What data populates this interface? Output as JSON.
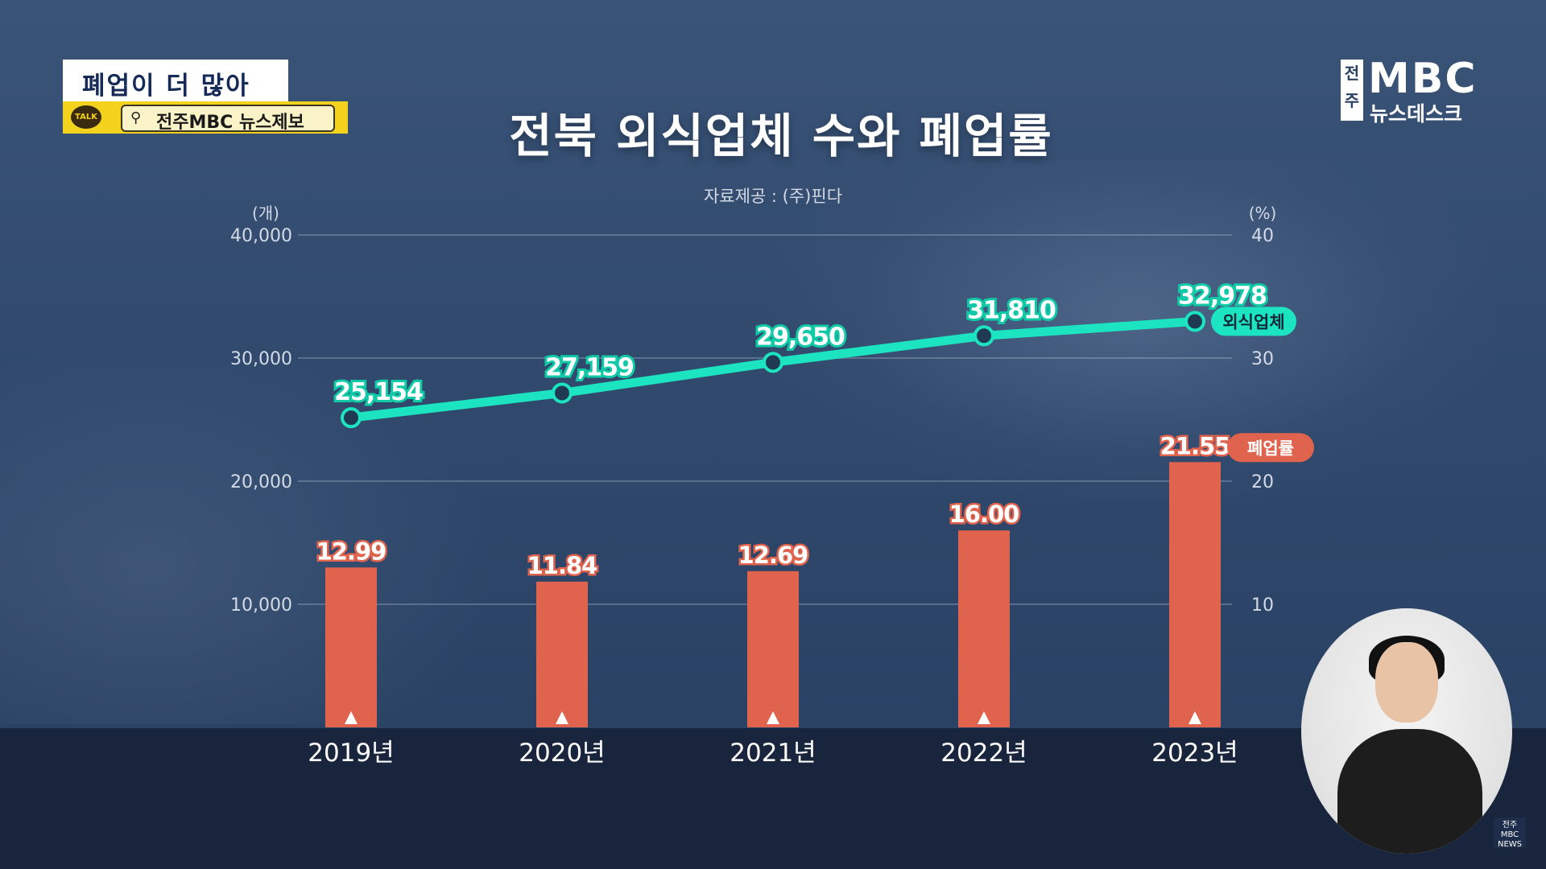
{
  "caption": {
    "headline": "폐업이 더 많아",
    "talk_label": "TALK",
    "tip_line": "전주MBC 뉴스제보"
  },
  "logo": {
    "local": "전주",
    "brand": "MBC",
    "program": "뉴스데스크"
  },
  "corner_badge": "전주 MBC NEWS",
  "colors": {
    "line": "#1de4c0",
    "bar": "#e0634e",
    "background": "#2b4162"
  },
  "chart_data": {
    "type": "bar",
    "title": "전북 외식업체 수와 폐업률",
    "source": "자료제공 : (주)핀다",
    "categories": [
      "2019년",
      "2020년",
      "2021년",
      "2022년",
      "2023년"
    ],
    "left_axis": {
      "unit": "(개)",
      "range": [
        0,
        40000
      ],
      "ticks": [
        "10,000",
        "20,000",
        "30,000",
        "40,000"
      ],
      "tick_values": [
        10000,
        20000,
        30000,
        40000
      ]
    },
    "right_axis": {
      "unit": "(%)",
      "range": [
        0,
        40
      ],
      "ticks": [
        "10",
        "20",
        "30",
        "40"
      ],
      "tick_values": [
        10,
        20,
        30,
        40
      ]
    },
    "series": [
      {
        "name": "외식업체",
        "type": "line",
        "axis": "left",
        "values": [
          25154,
          27159,
          29650,
          31810,
          32978
        ],
        "labels": [
          "25,154",
          "27,159",
          "29,650",
          "31,810",
          "32,978"
        ]
      },
      {
        "name": "폐업률",
        "type": "bar",
        "axis": "right",
        "values": [
          12.99,
          11.84,
          12.69,
          16.0,
          21.55
        ],
        "labels": [
          "12.99",
          "11.84",
          "12.69",
          "16.00",
          "21.55"
        ]
      }
    ],
    "grid": true
  }
}
